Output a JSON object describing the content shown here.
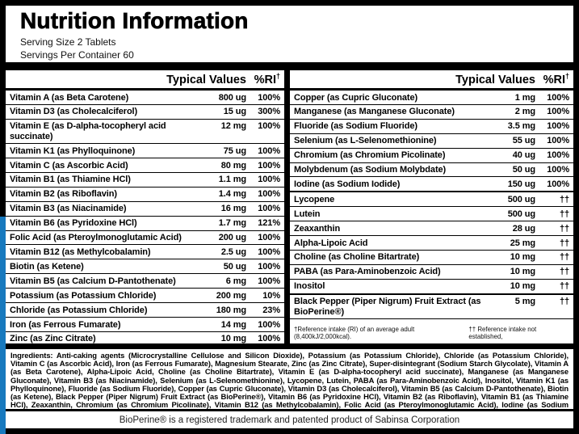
{
  "header": {
    "title": "Nutrition Information",
    "serving_size": "Serving Size 2 Tablets",
    "servings_per_container": "Servings Per Container 60"
  },
  "table": {
    "typical_values_label": "Typical Values",
    "ri_label": "%RI",
    "ri_dagger": "†",
    "left_rows": [
      {
        "name": "Vitamin A (as Beta Carotene)",
        "value": "800 ug",
        "ri": "100%"
      },
      {
        "name": "Vitamin D3 (as Cholecalciferol)",
        "value": "15 ug",
        "ri": "300%"
      },
      {
        "name": "Vitamin E (as D-alpha-tocopheryl acid succinate)",
        "value": "12 mg",
        "ri": "100%"
      },
      {
        "name": "Vitamin K1 (as Phylloquinone)",
        "value": "75 ug",
        "ri": "100%"
      },
      {
        "name": "Vitamin C (as Ascorbic Acid)",
        "value": "80 mg",
        "ri": "100%"
      },
      {
        "name": "Vitamin B1 (as Thiamine HCl)",
        "value": "1.1 mg",
        "ri": "100%"
      },
      {
        "name": "Vitamin B2 (as Riboflavin)",
        "value": "1.4 mg",
        "ri": "100%"
      },
      {
        "name": "Vitamin B3 (as Niacinamide)",
        "value": "16 mg",
        "ri": "100%"
      },
      {
        "name": "Vitamin B6 (as Pyridoxine HCl)",
        "value": "1.7 mg",
        "ri": "121%"
      },
      {
        "name": "Folic Acid (as Pteroylmonoglutamic Acid)",
        "value": "200 ug",
        "ri": "100%"
      },
      {
        "name": "Vitamin B12 (as Methylcobalamin)",
        "value": "2.5 ug",
        "ri": "100%"
      },
      {
        "name": "Biotin (as Ketene)",
        "value": "50 ug",
        "ri": "100%"
      },
      {
        "name": "Vitamin B5 (as Calcium D-Pantothenate)",
        "value": "6 mg",
        "ri": "100%"
      },
      {
        "name": "Potassium (as Potassium Chloride)",
        "value": "200 mg",
        "ri": "10%"
      },
      {
        "name": "Chloride (as Potassium Chloride)",
        "value": "180 mg",
        "ri": "23%"
      },
      {
        "name": "Iron (as Ferrous Fumarate)",
        "value": "14 mg",
        "ri": "100%"
      },
      {
        "name": "Zinc (as Zinc Citrate)",
        "value": "10 mg",
        "ri": "100%"
      }
    ],
    "right_rows": [
      {
        "name": "Copper (as Cupric Gluconate)",
        "value": "1 mg",
        "ri": "100%"
      },
      {
        "name": "Manganese (as Manganese Gluconate)",
        "value": "2 mg",
        "ri": "100%"
      },
      {
        "name": "Fluoride (as Sodium Fluoride)",
        "value": "3.5 mg",
        "ri": "100%"
      },
      {
        "name": "Selenium (as L-Selenomethionine)",
        "value": "55 ug",
        "ri": "100%"
      },
      {
        "name": "Chromium (as Chromium Picolinate)",
        "value": "40 ug",
        "ri": "100%"
      },
      {
        "name": "Molybdenum (as Sodium Molybdate)",
        "value": "50 ug",
        "ri": "100%"
      },
      {
        "name": "Iodine (as Sodium Iodide)",
        "value": "150 ug",
        "ri": "100%"
      },
      {
        "name": "Lycopene",
        "value": "500 ug",
        "ri": "††",
        "thick_top": true
      },
      {
        "name": "Lutein",
        "value": "500 ug",
        "ri": "††"
      },
      {
        "name": "Zeaxanthin",
        "value": "28 ug",
        "ri": "††"
      },
      {
        "name": "Alpha-Lipoic Acid",
        "value": "25 mg",
        "ri": "††"
      },
      {
        "name": "Choline (as Choline Bitartrate)",
        "value": "10 mg",
        "ri": "††"
      },
      {
        "name": "PABA (as Para-Aminobenzoic Acid)",
        "value": "10 mg",
        "ri": "††"
      },
      {
        "name": "Inositol",
        "value": "10 mg",
        "ri": "††"
      },
      {
        "name": "Black Pepper (Piper Nigrum) Fruit Extract (as BioPerine®)",
        "value": "5 mg",
        "ri": "††",
        "thick_top": true
      }
    ],
    "footnote_left": "†Reference intake (RI) of an average adult (8,400kJ/2,000kcal).",
    "footnote_right": "†† Reference intake not established,"
  },
  "ingredients": {
    "text": "Ingredients: Anti-caking agents (Microcrystalline Cellulose and Silicon Dioxide), Potassium (as Potassium Chloride), Chloride (as Potassium Chloride), Vitamin C (as Ascorbic Acid), Iron (as Ferrous Fumarate), Magnesium Stearate, Zinc (as Zinc Citrate), Super-disintegrant (Sodium Starch Glycolate), Vitamin A (as Beta Carotene), Alpha-Lipoic Acid, Choline (as Choline Bitartrate), Vitamin E (as D-alpha-tocopheryl acid succinate), Manganese (as Manganese Gluconate), Vitamin B3 (as Niacinamide), Selenium (as L-Selenomethionine), Lycopene, Lutein, PABA (as Para-Aminobenzoic Acid), Inositol, Vitamin K1 (as Phylloquinone), Fluoride (as Sodium Fluoride), Copper (as Cupric Gluconate), Vitamin D3 (as Cholecalciferol), Vitamin B5 (as Calcium D-Pantothenate), Biotin (as Ketene), Black Pepper (Piper Nigrum) Fruit Extract (as BioPerine®), Vitamin B6 (as Pyridoxine HCl), Vitamin B2 (as Riboflavin), Vitamin B1 (as Thiamine HCl), Zeaxanthin, Chromium (as Chromium Picolinate), Vitamin B12 (as Methylcobalamin), Folic Acid (as Pteroylmonoglutamic Acid), Iodine (as Sodium Iodide), Molybdenum (as Sodium Molybdate), Glazing agents (Hydroxypropyl Methyl Cellulose, Propylene Glycol and Triacetin)"
  },
  "trademark": "BioPerine® is a registered trademark and patented product of Sabinsa Corporation",
  "colors": {
    "accent_blue": "#1779BE",
    "frame_black": "#000000"
  }
}
